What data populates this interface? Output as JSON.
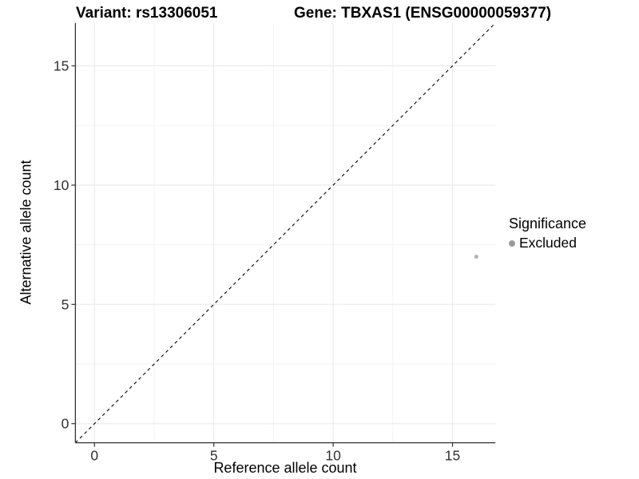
{
  "titles": {
    "variant": "Variant: rs13306051",
    "gene": "Gene: TBXAS1 (ENSG00000059377)"
  },
  "axes": {
    "x_label": "Reference allele count",
    "y_label": "Alternative allele count"
  },
  "legend": {
    "title": "Significance",
    "items": [
      {
        "label": "Excluded",
        "color": "#9b9b9b"
      }
    ]
  },
  "chart_data": {
    "type": "scatter",
    "title": "Variant: rs13306051 | Gene: TBXAS1 (ENSG00000059377)",
    "xlabel": "Reference allele count",
    "ylabel": "Alternative allele count",
    "xlim": [
      -0.8,
      16.8
    ],
    "ylim": [
      -0.8,
      16.8
    ],
    "x_breaks": [
      0,
      5,
      10,
      15
    ],
    "y_breaks": [
      0,
      5,
      10,
      15
    ],
    "x_minor_breaks": [
      2.5,
      7.5,
      12.5
    ],
    "y_minor_breaks": [
      2.5,
      7.5,
      12.5
    ],
    "series": [
      {
        "name": "Excluded",
        "color": "#b4b4b4",
        "points": [
          {
            "x": 16,
            "y": 7
          }
        ]
      }
    ],
    "identity_line": {
      "slope": 1,
      "intercept": 0,
      "style": "dashed",
      "color": "#000000"
    },
    "grid": true,
    "legend_position": "right",
    "colors": {
      "major_grid": "#e8e8e8",
      "minor_grid": "#f3f3f3",
      "axis_line": "#333333",
      "tick": "#333333",
      "tick_label": "#303030",
      "point": "#b4b4b4"
    }
  }
}
